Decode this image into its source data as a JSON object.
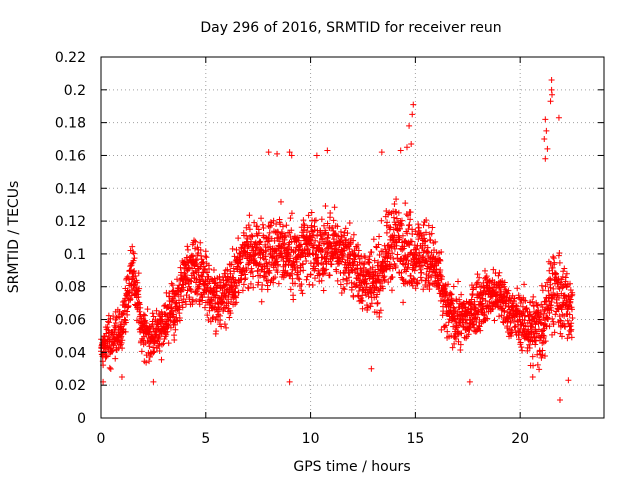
{
  "chart_data": {
    "type": "scatter",
    "title": "Day 296 of 2016, SRMTID for receiver reun",
    "xlabel": "GPS time / hours",
    "ylabel": "SRMTID / TECUs",
    "xlim": [
      0,
      24
    ],
    "ylim": [
      0,
      0.22
    ],
    "x_ticks": [
      0,
      5,
      10,
      15,
      20
    ],
    "y_ticks": [
      0,
      0.02,
      0.04,
      0.06,
      0.08,
      0.1,
      0.12,
      0.14,
      0.16,
      0.18,
      0.2,
      0.22
    ],
    "x_tick_labels": [
      "0",
      "5",
      "10",
      "15",
      "20"
    ],
    "y_tick_labels": [
      "0",
      "0.02",
      "0.04",
      "0.06",
      "0.08",
      "0.1",
      "0.12",
      "0.14",
      "0.16",
      "0.18",
      "0.2",
      "0.22"
    ],
    "marker": "+",
    "marker_color": "#ff0000",
    "grid": true,
    "grid_style": "dotted",
    "series": [
      {
        "name": "SRMTID",
        "color": "#ff0000",
        "trend": {
          "x": [
            0,
            0.5,
            1.0,
            1.5,
            2.0,
            2.5,
            3.0,
            3.5,
            4.0,
            4.5,
            5.0,
            5.5,
            6.0,
            6.5,
            7.0,
            7.5,
            8.0,
            8.5,
            9.0,
            9.5,
            10.0,
            10.5,
            11.0,
            11.5,
            12.0,
            12.5,
            13.0,
            13.5,
            14.0,
            14.5,
            15.0,
            15.5,
            16.0,
            16.5,
            17.0,
            17.5,
            18.0,
            18.5,
            19.0,
            19.5,
            20.0,
            20.5,
            21.0,
            21.5,
            22.0,
            22.5
          ],
          "y": [
            0.045,
            0.048,
            0.055,
            0.09,
            0.055,
            0.05,
            0.058,
            0.065,
            0.085,
            0.09,
            0.085,
            0.07,
            0.075,
            0.085,
            0.1,
            0.1,
            0.1,
            0.105,
            0.1,
            0.095,
            0.105,
            0.1,
            0.105,
            0.1,
            0.095,
            0.085,
            0.08,
            0.095,
            0.11,
            0.105,
            0.1,
            0.1,
            0.09,
            0.065,
            0.06,
            0.06,
            0.07,
            0.075,
            0.075,
            0.065,
            0.06,
            0.055,
            0.055,
            0.08,
            0.07,
            0.07
          ]
        },
        "spread": {
          "x": [
            0,
            1.0,
            2.0,
            3.0,
            4.0,
            5.0,
            6.0,
            7.0,
            8.0,
            9.0,
            10.0,
            11.0,
            12.0,
            13.0,
            14.0,
            15.0,
            16.0,
            17.0,
            18.0,
            19.0,
            20.0,
            21.0,
            22.0,
            22.5
          ],
          "y": [
            0.015,
            0.018,
            0.02,
            0.018,
            0.022,
            0.025,
            0.022,
            0.025,
            0.028,
            0.03,
            0.028,
            0.025,
            0.025,
            0.025,
            0.03,
            0.03,
            0.025,
            0.02,
            0.02,
            0.02,
            0.02,
            0.03,
            0.03,
            0.025
          ]
        },
        "outliers": [
          {
            "x": 21.5,
            "y": 0.206
          },
          {
            "x": 21.5,
            "y": 0.2
          },
          {
            "x": 21.52,
            "y": 0.197
          },
          {
            "x": 21.45,
            "y": 0.193
          },
          {
            "x": 14.9,
            "y": 0.191
          },
          {
            "x": 14.85,
            "y": 0.185
          },
          {
            "x": 14.7,
            "y": 0.178
          },
          {
            "x": 21.85,
            "y": 0.183
          },
          {
            "x": 21.2,
            "y": 0.182
          },
          {
            "x": 21.25,
            "y": 0.175
          },
          {
            "x": 21.15,
            "y": 0.17
          },
          {
            "x": 14.8,
            "y": 0.167
          },
          {
            "x": 14.6,
            "y": 0.165
          },
          {
            "x": 14.3,
            "y": 0.163
          },
          {
            "x": 8.0,
            "y": 0.162
          },
          {
            "x": 8.4,
            "y": 0.161
          },
          {
            "x": 9.0,
            "y": 0.162
          },
          {
            "x": 9.1,
            "y": 0.16
          },
          {
            "x": 10.3,
            "y": 0.16
          },
          {
            "x": 10.8,
            "y": 0.163
          },
          {
            "x": 13.4,
            "y": 0.162
          },
          {
            "x": 21.3,
            "y": 0.164
          },
          {
            "x": 21.2,
            "y": 0.158
          },
          {
            "x": 9.0,
            "y": 0.022
          },
          {
            "x": 21.9,
            "y": 0.011
          },
          {
            "x": 12.9,
            "y": 0.03
          },
          {
            "x": 2.5,
            "y": 0.022
          },
          {
            "x": 20.6,
            "y": 0.025
          },
          {
            "x": 22.3,
            "y": 0.023
          },
          {
            "x": 0.1,
            "y": 0.022
          },
          {
            "x": 1.0,
            "y": 0.025
          },
          {
            "x": 20.5,
            "y": 0.032
          },
          {
            "x": 17.6,
            "y": 0.022
          }
        ]
      }
    ]
  }
}
